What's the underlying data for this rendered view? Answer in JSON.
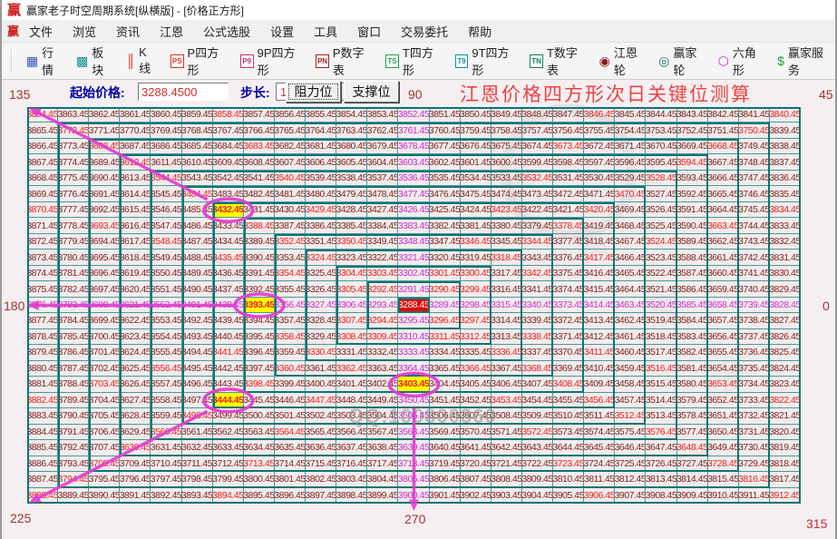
{
  "window": {
    "title": "赢家老子时空周期系统[纵横版] - [价格正方形]",
    "app_icon": "赢"
  },
  "menu": {
    "items": [
      "文件",
      "浏览",
      "资讯",
      "江恩",
      "公式选股",
      "设置",
      "工具",
      "窗口",
      "交易委托",
      "帮助"
    ]
  },
  "toolbar": {
    "items": [
      {
        "label": "行情",
        "icon": "quotes-table-icon",
        "glyph": "▦",
        "color": "#2f4fd0",
        "box": false
      },
      {
        "label": "板块",
        "icon": "sectors-icon",
        "glyph": "▩",
        "color": "#0d8f8f",
        "box": false
      },
      {
        "label": "K线",
        "icon": "kline-icon",
        "glyph": "║",
        "color": "#e02020",
        "box": false
      },
      {
        "label": "P四方形",
        "icon": "p-square-icon",
        "glyph": "PS",
        "color": "#e03030",
        "box": true
      },
      {
        "label": "9P四方形",
        "icon": "9p-square-icon",
        "glyph": "P9",
        "color": "#d03070",
        "box": true
      },
      {
        "label": "P数字表",
        "icon": "p-number-table-icon",
        "glyph": "PN",
        "color": "#a02020",
        "box": true
      },
      {
        "label": "T四方形",
        "icon": "t-square-icon",
        "glyph": "TS",
        "color": "#20a040",
        "box": true
      },
      {
        "label": "9T四方形",
        "icon": "9t-square-icon",
        "glyph": "T9",
        "color": "#1090a0",
        "box": true
      },
      {
        "label": "T数字表",
        "icon": "t-number-table-icon",
        "glyph": "TN",
        "color": "#108060",
        "box": true
      },
      {
        "label": "江恩轮",
        "icon": "gann-wheel-icon",
        "glyph": "◉",
        "color": "#8b1a1a",
        "box": false
      },
      {
        "label": "赢家轮",
        "icon": "winner-wheel-icon",
        "glyph": "◎",
        "color": "#116666",
        "box": false
      },
      {
        "label": "六角形",
        "icon": "hexagon-icon",
        "glyph": "⬡",
        "color": "#c030c0",
        "box": false
      },
      {
        "label": "赢家服务",
        "icon": "winner-service-icon",
        "glyph": "$",
        "color": "#18a038",
        "box": false
      }
    ]
  },
  "controls": {
    "start_price_label": "起始价格:",
    "start_price_value": "3288.4500",
    "step_label": "步长:",
    "step_value": "1",
    "resistance_button": "阻力位",
    "support_button": "支撑位",
    "heading": "江恩价格四方形次日关键位测算"
  },
  "angle_labels": [
    {
      "text": "135",
      "pos": "tl"
    },
    {
      "text": "90",
      "pos": "tc"
    },
    {
      "text": "45",
      "pos": "tr"
    },
    {
      "text": "180",
      "pos": "ml"
    },
    {
      "text": "0",
      "pos": "mr"
    },
    {
      "text": "225",
      "pos": "bl"
    },
    {
      "text": "270",
      "pos": "bc"
    },
    {
      "text": "315",
      "pos": "br"
    }
  ],
  "gann_square": {
    "start_price": "3288.45",
    "step": 1,
    "rows": 25,
    "cols": 25,
    "ring_count": 13,
    "decimal_suffix": ".45",
    "values": [
      [
        3864,
        3863,
        3862,
        3861,
        3860,
        3859,
        3858,
        3857,
        3856,
        3855,
        3854,
        3853,
        3852,
        3851,
        3850,
        3849,
        3848,
        3847,
        3846,
        3845,
        3844,
        3843,
        3842,
        3841,
        3840
      ],
      [
        3865,
        3772,
        3771,
        3770,
        3769,
        3768,
        3767,
        3766,
        3765,
        3764,
        3763,
        3762,
        3761,
        3760,
        3759,
        3758,
        3757,
        3756,
        3755,
        3754,
        3753,
        3752,
        3751,
        3750,
        3839
      ],
      [
        3866,
        3773,
        3688,
        3687,
        3686,
        3685,
        3684,
        3683,
        3682,
        3681,
        3680,
        3679,
        3678,
        3677,
        3676,
        3675,
        3674,
        3673,
        3672,
        3671,
        3670,
        3669,
        3668,
        3749,
        3838
      ],
      [
        3867,
        3774,
        3689,
        3612,
        3611,
        3610,
        3609,
        3608,
        3607,
        3606,
        3605,
        3604,
        3603,
        3602,
        3601,
        3600,
        3599,
        3598,
        3597,
        3596,
        3595,
        3594,
        3667,
        3748,
        3837
      ],
      [
        3868,
        3775,
        3690,
        3613,
        3544,
        3543,
        3542,
        3541,
        3540,
        3539,
        3538,
        3537,
        3536,
        3535,
        3534,
        3533,
        3532,
        3531,
        3530,
        3529,
        3528,
        3593,
        3666,
        3747,
        3836
      ],
      [
        3869,
        3776,
        3691,
        3614,
        3545,
        3484,
        3483,
        3482,
        3481,
        3480,
        3479,
        3478,
        3477,
        3476,
        3475,
        3474,
        3473,
        3472,
        3471,
        3470,
        3527,
        3592,
        3665,
        3746,
        3835
      ],
      [
        3870,
        3777,
        3692,
        3615,
        3546,
        3485,
        3432,
        3431,
        3430,
        3429,
        3428,
        3427,
        3426,
        3425,
        3424,
        3423,
        3422,
        3421,
        3420,
        3469,
        3526,
        3591,
        3664,
        3745,
        3834
      ],
      [
        3871,
        3778,
        3693,
        3616,
        3547,
        3486,
        3433,
        3388,
        3387,
        3386,
        3385,
        3384,
        3383,
        3382,
        3381,
        3380,
        3379,
        3378,
        3419,
        3468,
        3525,
        3590,
        3663,
        3744,
        3833
      ],
      [
        3872,
        3779,
        3694,
        3617,
        3548,
        3487,
        3434,
        3389,
        3352,
        3351,
        3350,
        3349,
        3348,
        3347,
        3346,
        3345,
        3344,
        3377,
        3418,
        3467,
        3524,
        3589,
        3662,
        3743,
        3832
      ],
      [
        3873,
        3780,
        3695,
        3618,
        3549,
        3488,
        3435,
        3390,
        3353,
        3324,
        3323,
        3322,
        3321,
        3320,
        3319,
        3318,
        3343,
        3376,
        3417,
        3466,
        3523,
        3588,
        3661,
        3742,
        3831
      ],
      [
        3874,
        3781,
        3696,
        3619,
        3550,
        3489,
        3436,
        3391,
        3354,
        3325,
        3304,
        3303,
        3302,
        3301,
        3300,
        3317,
        3342,
        3375,
        3416,
        3465,
        3522,
        3587,
        3660,
        3741,
        3830
      ],
      [
        3875,
        3782,
        3697,
        3620,
        3551,
        3490,
        3437,
        3392,
        3355,
        3326,
        3305,
        3292,
        3291,
        3290,
        3299,
        3316,
        3341,
        3374,
        3415,
        3464,
        3521,
        3586,
        3659,
        3740,
        3829
      ],
      [
        3876,
        3783,
        3698,
        3621,
        3552,
        3491,
        3438,
        3393,
        3356,
        3327,
        3306,
        3293,
        3288,
        3289,
        3298,
        3315,
        3340,
        3373,
        3414,
        3463,
        3520,
        3585,
        3658,
        3739,
        3828
      ],
      [
        3877,
        3784,
        3699,
        3622,
        3553,
        3492,
        3439,
        3394,
        3357,
        3328,
        3307,
        3294,
        3295,
        3296,
        3297,
        3314,
        3339,
        3372,
        3413,
        3462,
        3519,
        3584,
        3657,
        3738,
        3827
      ],
      [
        3878,
        3785,
        3700,
        3623,
        3554,
        3493,
        3440,
        3395,
        3358,
        3329,
        3308,
        3309,
        3310,
        3311,
        3312,
        3313,
        3338,
        3371,
        3412,
        3461,
        3518,
        3583,
        3656,
        3737,
        3826
      ],
      [
        3879,
        3786,
        3701,
        3624,
        3555,
        3494,
        3441,
        3396,
        3359,
        3330,
        3331,
        3332,
        3333,
        3334,
        3335,
        3336,
        3337,
        3370,
        3411,
        3460,
        3517,
        3582,
        3655,
        3736,
        3825
      ],
      [
        3880,
        3787,
        3702,
        3625,
        3556,
        3495,
        3442,
        3397,
        3360,
        3361,
        3362,
        3363,
        3364,
        3365,
        3366,
        3367,
        3368,
        3369,
        3410,
        3459,
        3516,
        3581,
        3654,
        3735,
        3824
      ],
      [
        3881,
        3788,
        3703,
        3626,
        3557,
        3496,
        3443,
        3398,
        3399,
        3400,
        3401,
        3402,
        3403,
        3404,
        3405,
        3406,
        3407,
        3408,
        3409,
        3458,
        3515,
        3580,
        3653,
        3734,
        3823
      ],
      [
        3882,
        3789,
        3704,
        3627,
        3558,
        3497,
        3444,
        3445,
        3446,
        3447,
        3448,
        3449,
        3450,
        3451,
        3452,
        3453,
        3454,
        3455,
        3456,
        3457,
        3514,
        3579,
        3652,
        3733,
        3822
      ],
      [
        3883,
        3790,
        3705,
        3628,
        3559,
        3498,
        3499,
        3500,
        3501,
        3502,
        3503,
        3504,
        3505,
        3506,
        3507,
        3508,
        3509,
        3510,
        3511,
        3512,
        3513,
        3578,
        3651,
        3732,
        3821
      ],
      [
        3884,
        3791,
        3706,
        3629,
        3560,
        3561,
        3562,
        3563,
        3564,
        3565,
        3566,
        3567,
        3568,
        3569,
        3570,
        3571,
        3572,
        3573,
        3574,
        3575,
        3576,
        3577,
        3650,
        3731,
        3820
      ],
      [
        3885,
        3792,
        3707,
        3630,
        3631,
        3632,
        3633,
        3634,
        3635,
        3636,
        3637,
        3638,
        3639,
        3640,
        3641,
        3642,
        3643,
        3644,
        3645,
        3646,
        3647,
        3648,
        3649,
        3730,
        3819
      ],
      [
        3886,
        3793,
        3708,
        3709,
        3710,
        3711,
        3712,
        3713,
        3714,
        3715,
        3716,
        3717,
        3718,
        3719,
        3720,
        3721,
        3722,
        3723,
        3724,
        3725,
        3726,
        3727,
        3728,
        3729,
        3818
      ],
      [
        3887,
        3794,
        3795,
        3796,
        3797,
        3798,
        3799,
        3800,
        3801,
        3802,
        3803,
        3804,
        3805,
        3806,
        3807,
        3808,
        3809,
        3810,
        3811,
        3812,
        3813,
        3814,
        3815,
        3816,
        3817
      ],
      [
        3888,
        3889,
        3890,
        3891,
        3892,
        3893,
        3894,
        3895,
        3896,
        3897,
        3898,
        3899,
        3900,
        3901,
        3902,
        3903,
        3904,
        3905,
        3906,
        3907,
        3908,
        3909,
        3910,
        3911,
        3912
      ]
    ],
    "colors": [
      "rdddddrdddddmdddddrdddddr",
      "drddddddddddmddddddddddrd",
      "ddrddddrddddmddddrddddrdd",
      "dddrddddddddmddddddddrddd",
      "ddddrdddrdddmdddrdddrdddd",
      "dddddrddddddmddddddrddddd",
      "rdddddYddrddmddrddrdddddr",
      "ddrddddrddddmddddrddddrdd",
      "ddddrdddrdrdmdrdrdddrdddd",
      "ddddddrddrddmddrddrdddddd",
      "ddddddddrdrrmrrdrdddddddd",
      "ddddddddddrrmrrdddddddddd",
      "mmmmmmmYmmmmCmmmmmmmmmmmm",
      "ddddddddddrrmrrdddddddddd",
      "ddddddddrdrrmrrdrdddddddd",
      "ddddddrddrddmddrddrdddddd",
      "ddddrdddrdrdmdrdrdddrdddd",
      "ddrddddrddddYddddrddddrdd",
      "rdddddYddrddmddrddrdddddr",
      "dddddrddddddmddddddrddddd",
      "ddddrdddrdddmdddrdddrdddd",
      "dddrddddddddmddddddddrddd",
      "ddrddddrddddmddddrddddrdd",
      "drddddddddddmddddddddddrd",
      "rdddddrdddddmdddddrdddddr"
    ],
    "highlighted_cells": [
      {
        "cell": [
          6,
          6
        ],
        "value": "3432.45"
      },
      {
        "cell": [
          12,
          7
        ],
        "value": "3393.45"
      },
      {
        "cell": [
          17,
          12
        ],
        "value": "3403.45"
      },
      {
        "cell": [
          18,
          6
        ],
        "value": "3444.45"
      }
    ],
    "arrows": [
      {
        "from": [
          6,
          6
        ],
        "to": [
          0,
          0
        ],
        "angle": "135"
      },
      {
        "from": [
          12,
          7
        ],
        "to": [
          12,
          0
        ],
        "angle": "180"
      },
      {
        "from": [
          18,
          6
        ],
        "to": [
          24,
          0
        ],
        "angle": "225"
      },
      {
        "from": [
          17,
          12
        ],
        "to": [
          24,
          12
        ],
        "angle": "270"
      }
    ]
  },
  "watermark": {
    "qq_text": "QQ:100800360",
    "logo_char": "赢"
  },
  "palette": {
    "grid_line": "#4b9898",
    "ring_border": "#0c7474",
    "normal_text": "#7f1f1f",
    "diagonal_text": "#ee2020",
    "cardinal_text": "#cb2fcb",
    "highlight_bg": "#ffff00",
    "center_bg": "#e00000",
    "accent_magenta": "#e03fd0",
    "heading_red": "#ea4343",
    "label_blue": "#0000a0",
    "angle_label": "#a03232"
  }
}
